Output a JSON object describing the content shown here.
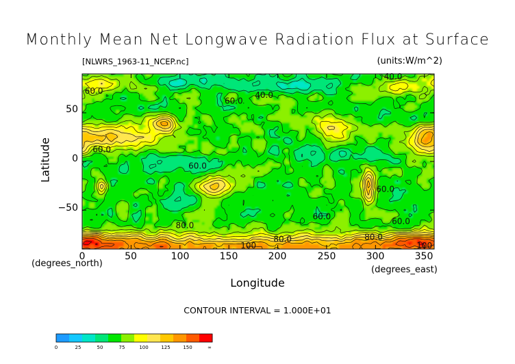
{
  "chart_data": {
    "type": "heatmap",
    "title": "Monthly Mean Net Longwave Radiation Flux at Surface",
    "file_label": "[NLWRS_1963-11_NCEP.nc]",
    "units_label": "(units:W/m^2)",
    "xlabel": "Longitude",
    "ylabel": "Latitude",
    "x_unit_note": "(degrees_east)",
    "y_unit_note": "(degrees_north)",
    "xlim": [
      0,
      360
    ],
    "ylim": [
      -90,
      90
    ],
    "x_ticks": [
      "0",
      "50",
      "100",
      "150",
      "200",
      "250",
      "300",
      "350"
    ],
    "x_tick_values": [
      0,
      50,
      100,
      150,
      200,
      250,
      300,
      350
    ],
    "y_ticks": [
      "50",
      "0",
      "−50"
    ],
    "y_tick_values": [
      50,
      0,
      -50
    ],
    "contour_interval": "CONTOUR INTERVAL = 1.000E+01",
    "contour_labels": [
      {
        "text": "60.0",
        "lon": 12,
        "lat": 72
      },
      {
        "text": "40.0",
        "lon": 186,
        "lat": 68
      },
      {
        "text": "60.0",
        "lon": 155,
        "lat": 62
      },
      {
        "text": "40.0",
        "lon": 318,
        "lat": 87
      },
      {
        "text": "60.0",
        "lon": 20,
        "lat": 12
      },
      {
        "text": "60.0",
        "lon": 118,
        "lat": -5
      },
      {
        "text": "60.0",
        "lon": 310,
        "lat": -29
      },
      {
        "text": "60.0",
        "lon": 245,
        "lat": -57
      },
      {
        "text": "60.0",
        "lon": 326,
        "lat": -62
      },
      {
        "text": "80.0",
        "lon": 105,
        "lat": -66
      },
      {
        "text": "80.0",
        "lon": 205,
        "lat": -80
      },
      {
        "text": "80.0",
        "lon": 298,
        "lat": -78
      },
      {
        "text": "100",
        "lon": 170,
        "lat": -87
      },
      {
        "text": "100",
        "lon": 350,
        "lat": -87
      }
    ],
    "colorbar": {
      "ticks": [
        "0",
        "25",
        "50",
        "75",
        "100",
        "125",
        "150",
        "∞"
      ],
      "colors": [
        "#1e9bff",
        "#14c8ff",
        "#00e6c8",
        "#00e678",
        "#00e600",
        "#8cf000",
        "#ffff00",
        "#ffe650",
        "#ffc800",
        "#ff9600",
        "#ff5a00",
        "#ff0000"
      ]
    },
    "grid": false
  }
}
